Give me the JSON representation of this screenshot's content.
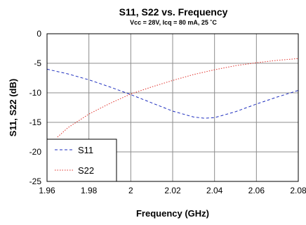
{
  "chart_data": {
    "type": "line",
    "title": "S11, S22 vs. Frequency",
    "subtitle": "Vcc = 28V, Icq = 80 mA, 25 ˚C",
    "xlabel": "Frequency (GHz)",
    "ylabel": "S11, S22 (dB)",
    "xlim": [
      1.96,
      2.08
    ],
    "ylim": [
      -25,
      0
    ],
    "x_ticks": [
      "1.96",
      "1.98",
      "2",
      "2.02",
      "2.04",
      "2.06",
      "2.08"
    ],
    "y_ticks": [
      "0",
      "-5",
      "-10",
      "-15",
      "-20",
      "-25"
    ],
    "grid": true,
    "legend_position": "bottom-left",
    "series": [
      {
        "name": "S11",
        "color": "#1f2fbf",
        "line_style": "dashed",
        "x": [
          1.96,
          1.97,
          1.98,
          1.99,
          2.0,
          2.01,
          2.02,
          2.03,
          2.035,
          2.04,
          2.05,
          2.06,
          2.07,
          2.08
        ],
        "y": [
          -6.0,
          -6.8,
          -7.8,
          -9.0,
          -10.3,
          -11.7,
          -13.1,
          -14.1,
          -14.3,
          -14.2,
          -13.2,
          -11.9,
          -10.7,
          -9.6
        ]
      },
      {
        "name": "S22",
        "color": "#e0302a",
        "line_style": "dotted",
        "x": [
          1.965,
          1.97,
          1.98,
          1.99,
          2.0,
          2.01,
          2.02,
          2.03,
          2.04,
          2.05,
          2.06,
          2.07,
          2.08
        ],
        "y": [
          -17.5,
          -15.9,
          -13.6,
          -11.8,
          -10.2,
          -9.0,
          -7.9,
          -6.9,
          -6.1,
          -5.4,
          -4.9,
          -4.5,
          -4.2
        ]
      }
    ]
  }
}
